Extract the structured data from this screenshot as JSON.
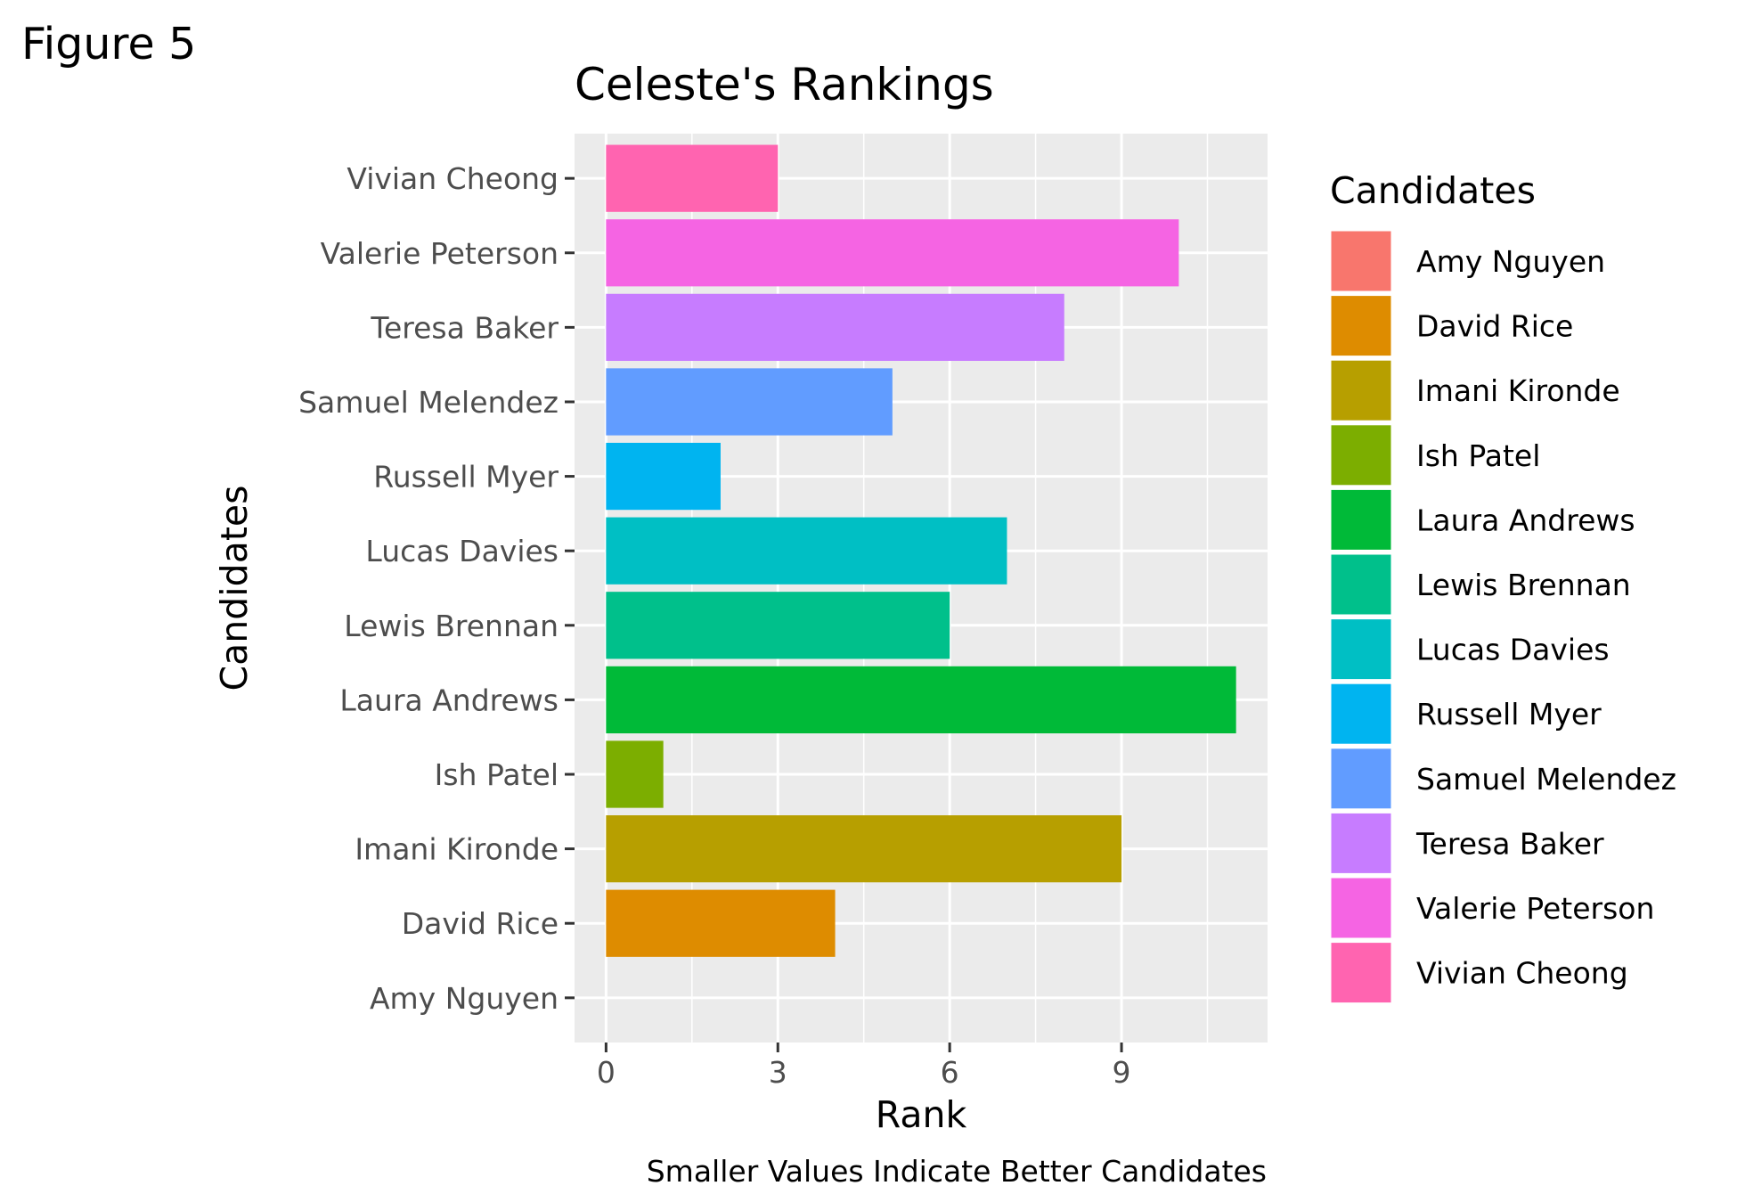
{
  "figure_label": "Figure 5",
  "chart_data": {
    "type": "bar",
    "orientation": "horizontal",
    "title": "Celeste's Rankings",
    "xlabel": "Rank",
    "ylabel": "Candidates",
    "caption": "Smaller Values Indicate Better Candidates",
    "xlim": [
      -0.55,
      11.55
    ],
    "xticks": [
      0,
      3,
      6,
      9
    ],
    "grid": true,
    "legend_title": "Candidates",
    "legend_position": "right",
    "categories": [
      "Amy Nguyen",
      "David Rice",
      "Imani Kironde",
      "Ish Patel",
      "Laura Andrews",
      "Lewis Brennan",
      "Lucas Davies",
      "Russell Myer",
      "Samuel Melendez",
      "Teresa Baker",
      "Valerie Peterson",
      "Vivian Cheong"
    ],
    "values": [
      0,
      4,
      9,
      1,
      11,
      6,
      7,
      2,
      5,
      8,
      10,
      3
    ],
    "colors": [
      "#F8766D",
      "#DE8C00",
      "#B79F00",
      "#7CAE00",
      "#00BA38",
      "#00C08B",
      "#00BFC4",
      "#00B4F0",
      "#619CFF",
      "#C77CFF",
      "#F564E3",
      "#FF64B0"
    ]
  }
}
